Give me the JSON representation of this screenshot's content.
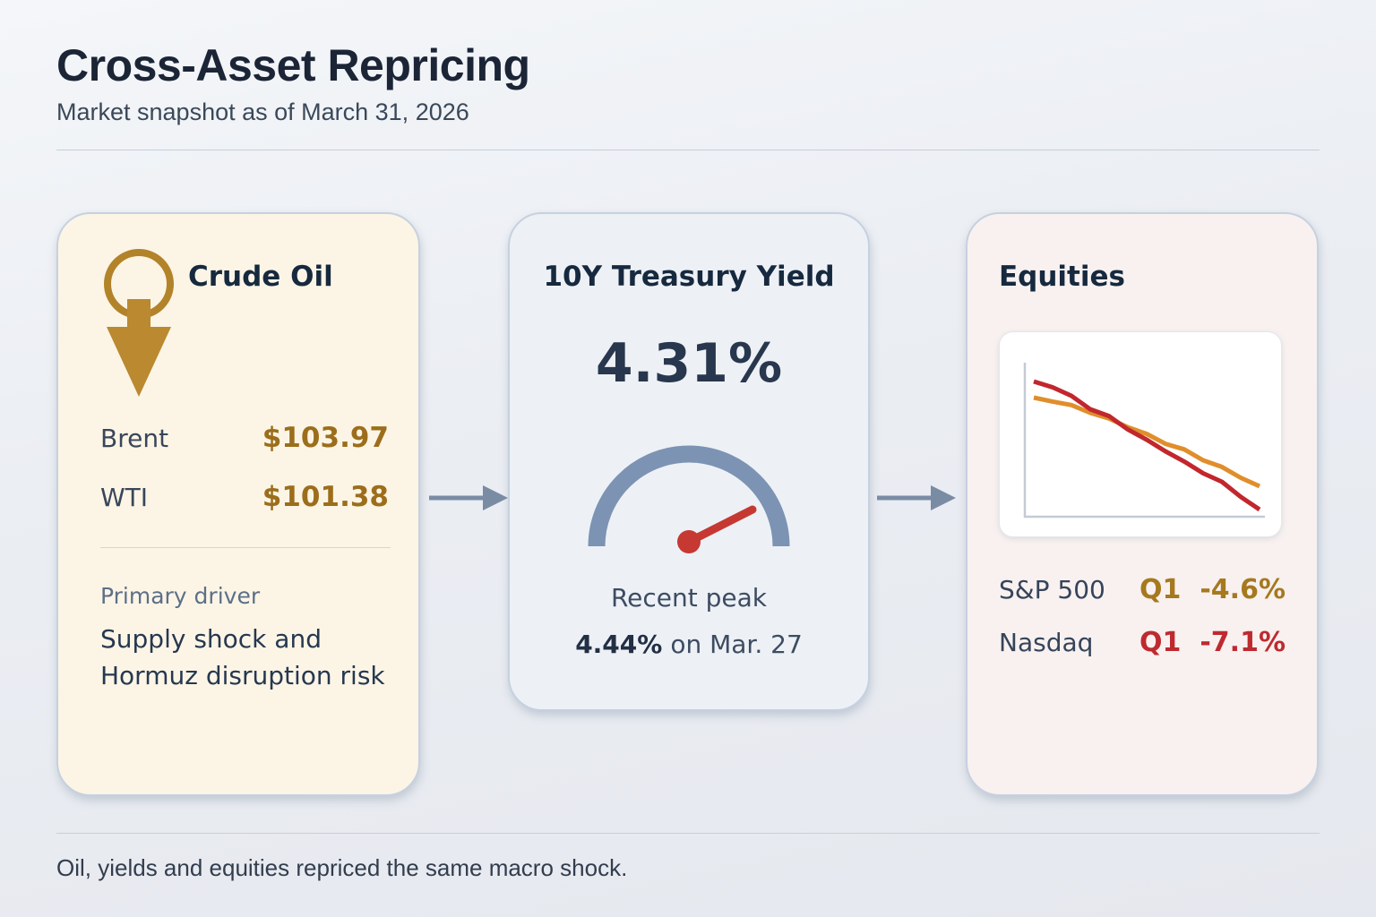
{
  "page": {
    "title": "Cross-Asset Repricing",
    "subtitle": "Market snapshot as of March 31, 2026",
    "footer": "Oil, yields and equities repriced the same macro shock."
  },
  "cards": {
    "oil": {
      "title": "Crude Oil",
      "icon": "oil-price-down-arrow-icon",
      "rows": [
        {
          "label": "Brent",
          "value": "$103.97"
        },
        {
          "label": "WTI",
          "value": "$101.38"
        }
      ],
      "driver_label": "Primary driver",
      "driver_text": "Supply shock and Hormuz disruption risk"
    },
    "treasury": {
      "title": "10Y Treasury Yield",
      "current_yield": "4.31%",
      "peak_label": "Recent peak",
      "peak_value": "4.44%",
      "peak_suffix": "on Mar. 27"
    },
    "equities": {
      "title": "Equities",
      "rows": [
        {
          "label": "S&P 500",
          "period": "Q1",
          "value": "-4.6%",
          "color": "#A6791F"
        },
        {
          "label": "Nasdaq",
          "period": "Q1",
          "value": "-7.1%",
          "color": "#BE2A2F"
        }
      ]
    }
  },
  "colors": {
    "page_background": "#EBEEF3",
    "card_border": "#C6D1E0",
    "oil_card_background": "#FCF5E6",
    "treasury_card_background": "#EDF1F6",
    "equities_card_background": "#F8F1F0",
    "gold_accent": "#9C6E1B",
    "gold_icon": "#B3832A",
    "red_accent": "#BE2A2F",
    "gauge_arc": "#7C93B3",
    "gauge_needle": "#C63832",
    "flow_arrow": "#7A8CA4",
    "dark_navy_text": "#16293E"
  },
  "chart_data": [
    {
      "type": "line",
      "title": "Equities Q1 drawdown sparkline (unlabeled)",
      "x": [
        0,
        1,
        2,
        3,
        4,
        5,
        6,
        7,
        8,
        9,
        10,
        11,
        12
      ],
      "series": [
        {
          "name": "S&P 500",
          "color": "#E08E2B",
          "values": [
            -0.3,
            -0.45,
            -0.7,
            -1.0,
            -1.35,
            -1.7,
            -2.1,
            -2.5,
            -2.85,
            -3.3,
            -3.7,
            -4.15,
            -4.6
          ]
        },
        {
          "name": "Nasdaq",
          "color": "#C1272D",
          "values": [
            0.5,
            0.2,
            -0.4,
            -1.1,
            -1.6,
            -2.3,
            -3.0,
            -3.6,
            -4.3,
            -4.9,
            -5.5,
            -6.3,
            -7.1
          ]
        }
      ],
      "xlabel": "",
      "ylabel": "",
      "grid": false,
      "legend": "none",
      "note": "Schematic sparkline: lines cross near the first quarter of the x-range; Nasdaq ends lower."
    },
    {
      "type": "gauge",
      "title": "10Y Treasury Yield gauge",
      "current_pct": 4.31,
      "peak_pct": 4.44,
      "peak_date": "Mar. 27",
      "needle_angle_deg": -27
    }
  ]
}
